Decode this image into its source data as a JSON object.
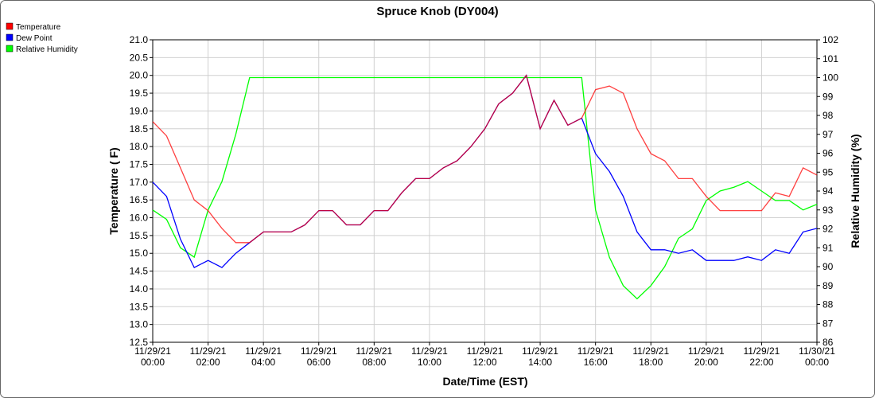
{
  "chart_data": {
    "type": "line",
    "title": "Spruce Knob (DY004)",
    "x_label": "Date/Time (EST)",
    "y_label": "Temperature ( F)",
    "y2_label": "Relative Humidity (%)",
    "x": [
      "11/29/21 00:00",
      "11/29/21 00:30",
      "11/29/21 01:00",
      "11/29/21 01:30",
      "11/29/21 02:00",
      "11/29/21 02:30",
      "11/29/21 03:00",
      "11/29/21 03:30",
      "11/29/21 04:00",
      "11/29/21 04:30",
      "11/29/21 05:00",
      "11/29/21 05:30",
      "11/29/21 06:00",
      "11/29/21 06:30",
      "11/29/21 07:00",
      "11/29/21 07:30",
      "11/29/21 08:00",
      "11/29/21 08:30",
      "11/29/21 09:00",
      "11/29/21 09:30",
      "11/29/21 10:00",
      "11/29/21 10:30",
      "11/29/21 11:00",
      "11/29/21 11:30",
      "11/29/21 12:00",
      "11/29/21 12:30",
      "11/29/21 13:00",
      "11/29/21 13:30",
      "11/29/21 14:00",
      "11/29/21 14:30",
      "11/29/21 15:00",
      "11/29/21 15:30",
      "11/29/21 16:00",
      "11/29/21 16:30",
      "11/29/21 17:00",
      "11/29/21 17:30",
      "11/29/21 18:00",
      "11/29/21 18:30",
      "11/29/21 19:00",
      "11/29/21 19:30",
      "11/29/21 20:00",
      "11/29/21 20:30",
      "11/29/21 21:00",
      "11/29/21 21:30",
      "11/29/21 22:00",
      "11/29/21 22:30",
      "11/29/21 23:00",
      "11/29/21 23:30",
      "11/30/21 00:00"
    ],
    "xticks": [
      "11/29/21 00:00",
      "11/29/21 02:00",
      "11/29/21 04:00",
      "11/29/21 06:00",
      "11/29/21 08:00",
      "11/29/21 10:00",
      "11/29/21 12:00",
      "11/29/21 14:00",
      "11/29/21 16:00",
      "11/29/21 18:00",
      "11/29/21 20:00",
      "11/29/21 22:00",
      "11/30/21 00:00"
    ],
    "series": [
      {
        "name": "Temperature",
        "color": "#ff0000",
        "values": [
          18.7,
          18.3,
          17.4,
          16.5,
          16.2,
          15.7,
          15.3,
          15.3,
          15.6,
          15.6,
          15.6,
          15.8,
          16.2,
          16.2,
          15.8,
          15.8,
          16.2,
          16.2,
          16.7,
          17.1,
          17.1,
          17.4,
          17.6,
          18.0,
          18.5,
          19.2,
          19.5,
          20.0,
          18.5,
          19.3,
          18.6,
          18.8,
          19.6,
          19.7,
          19.5,
          18.5,
          17.8,
          17.6,
          17.1,
          17.1,
          16.6,
          16.2,
          16.2,
          16.2,
          16.2,
          16.7,
          16.6,
          17.4,
          17.2
        ]
      },
      {
        "name": "Dew Point",
        "color": "#0000ff",
        "values": [
          17.0,
          16.6,
          15.4,
          14.6,
          14.8,
          14.6,
          15.0,
          15.3,
          15.6,
          15.6,
          15.6,
          15.8,
          16.2,
          16.2,
          15.8,
          15.8,
          16.2,
          16.2,
          16.7,
          17.1,
          17.1,
          17.4,
          17.6,
          18.0,
          18.5,
          19.2,
          19.5,
          20.0,
          18.5,
          19.3,
          18.6,
          18.8,
          17.8,
          17.3,
          16.6,
          15.6,
          15.1,
          15.1,
          15.0,
          15.1,
          14.8,
          14.8,
          14.8,
          14.9,
          14.8,
          15.1,
          15.0,
          15.6,
          15.7
        ]
      },
      {
        "name": "Relative Humidity",
        "color": "#00ff00",
        "axis": "y2",
        "values": [
          93,
          92.5,
          91,
          90.5,
          93,
          94.5,
          97,
          100,
          100,
          100,
          100,
          100,
          100,
          100,
          100,
          100,
          100,
          100,
          100,
          100,
          100,
          100,
          100,
          100,
          100,
          100,
          100,
          100,
          100,
          100,
          100,
          100,
          93,
          90.5,
          89,
          88.3,
          89,
          90,
          91.5,
          92,
          93.5,
          94,
          94.2,
          94.5,
          94,
          93.5,
          93.5,
          93,
          93.3
        ]
      }
    ],
    "ylim": [
      12.5,
      21
    ],
    "yticks": [
      12.5,
      {
        "value": 13,
        "label": "13.0"
      },
      13.5,
      {
        "value": 14,
        "label": "14.0"
      },
      14.5,
      {
        "value": 15,
        "label": "15.0"
      },
      15.5,
      {
        "value": 16,
        "label": "16.0"
      },
      16.5,
      {
        "value": 17,
        "label": "17.0"
      },
      17.5,
      {
        "value": 18,
        "label": "18.0"
      },
      18.5,
      {
        "value": 19,
        "label": "19.0"
      },
      19.5,
      {
        "value": 20,
        "label": "20.0"
      },
      20.5,
      {
        "value": 21,
        "label": "21.0"
      }
    ],
    "y2lim": [
      86,
      102
    ],
    "y2ticks": [
      86,
      87,
      88,
      89,
      90,
      91,
      92,
      93,
      94,
      95,
      96,
      97,
      98,
      99,
      100,
      101,
      102
    ],
    "grid": true
  }
}
